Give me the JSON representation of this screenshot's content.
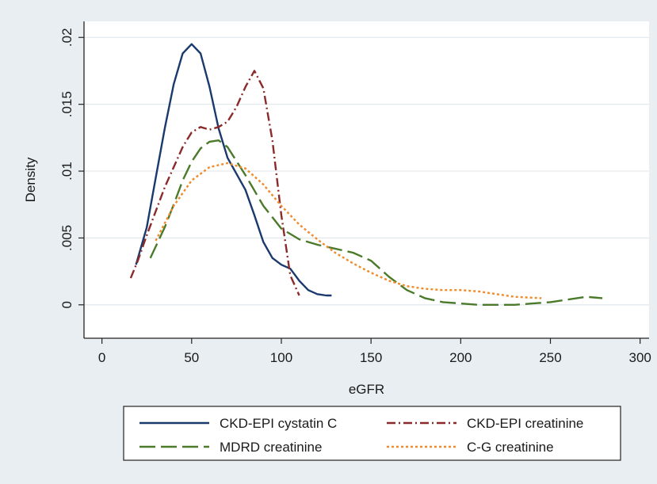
{
  "chart_data": {
    "type": "line",
    "title": "",
    "xlabel": "eGFR",
    "ylabel": "Density",
    "xlim": [
      -10,
      305
    ],
    "ylim": [
      -0.0025,
      0.0212
    ],
    "xticks": [
      0,
      50,
      100,
      150,
      200,
      250,
      300
    ],
    "xtick_labels": [
      "0",
      "50",
      "100",
      "150",
      "200",
      "250",
      "300"
    ],
    "yticks": [
      0,
      0.005,
      0.01,
      0.015,
      0.02
    ],
    "ytick_labels": [
      "0",
      ".005",
      ".01",
      ".015",
      ".02"
    ],
    "grid": "horizontal",
    "legend_position": "bottom",
    "series": [
      {
        "name": "CKD-EPI cystatin C",
        "color": "#1a3a6e",
        "dash": "solid",
        "x": [
          19,
          25,
          30,
          35,
          40,
          45,
          50,
          55,
          60,
          65,
          70,
          75,
          80,
          85,
          90,
          95,
          100,
          105,
          110,
          115,
          120,
          125,
          128
        ],
        "y": [
          0.003,
          0.0058,
          0.0095,
          0.0132,
          0.0165,
          0.0188,
          0.0195,
          0.0188,
          0.0163,
          0.0132,
          0.011,
          0.0098,
          0.0086,
          0.0067,
          0.0047,
          0.0035,
          0.003,
          0.0027,
          0.0018,
          0.0011,
          0.0008,
          0.0007,
          0.0007
        ]
      },
      {
        "name": "CKD-EPI creatinine",
        "color": "#8b2a2a",
        "dash": "dashdot",
        "x": [
          16,
          20,
          25,
          30,
          35,
          40,
          45,
          50,
          55,
          60,
          65,
          70,
          75,
          80,
          85,
          90,
          95,
          100,
          105,
          110
        ],
        "y": [
          0.002,
          0.0033,
          0.0052,
          0.007,
          0.0088,
          0.0103,
          0.0118,
          0.0129,
          0.0133,
          0.0131,
          0.0133,
          0.0137,
          0.0148,
          0.0163,
          0.0175,
          0.0162,
          0.0123,
          0.0067,
          0.0022,
          0.0007
        ]
      },
      {
        "name": "MDRD creatinine",
        "color": "#4a7a2a",
        "dash": "longdash",
        "x": [
          27,
          35,
          40,
          45,
          50,
          55,
          60,
          65,
          70,
          80,
          90,
          100,
          110,
          120,
          130,
          140,
          150,
          160,
          170,
          180,
          190,
          200,
          210,
          220,
          230,
          240,
          250,
          260,
          270,
          279
        ],
        "y": [
          0.0035,
          0.0058,
          0.0075,
          0.0093,
          0.0107,
          0.0117,
          0.0122,
          0.0123,
          0.0118,
          0.0097,
          0.0074,
          0.0057,
          0.0049,
          0.0045,
          0.0042,
          0.0039,
          0.0033,
          0.0021,
          0.0011,
          0.0005,
          0.0002,
          0.0001,
          0.0,
          0.0,
          0.0,
          0.0001,
          0.0002,
          0.0004,
          0.0006,
          0.0005
        ]
      },
      {
        "name": "C-G creatinine",
        "color": "#f08a2a",
        "dash": "dotted",
        "x": [
          30,
          40,
          50,
          60,
          70,
          80,
          90,
          100,
          110,
          120,
          130,
          140,
          150,
          160,
          170,
          180,
          190,
          200,
          210,
          220,
          230,
          245
        ],
        "y": [
          0.0048,
          0.0074,
          0.0093,
          0.0103,
          0.0106,
          0.0102,
          0.009,
          0.0074,
          0.006,
          0.0049,
          0.0039,
          0.0031,
          0.0024,
          0.0018,
          0.0014,
          0.0012,
          0.0011,
          0.0011,
          0.001,
          0.0008,
          0.0006,
          0.0005
        ]
      }
    ]
  }
}
